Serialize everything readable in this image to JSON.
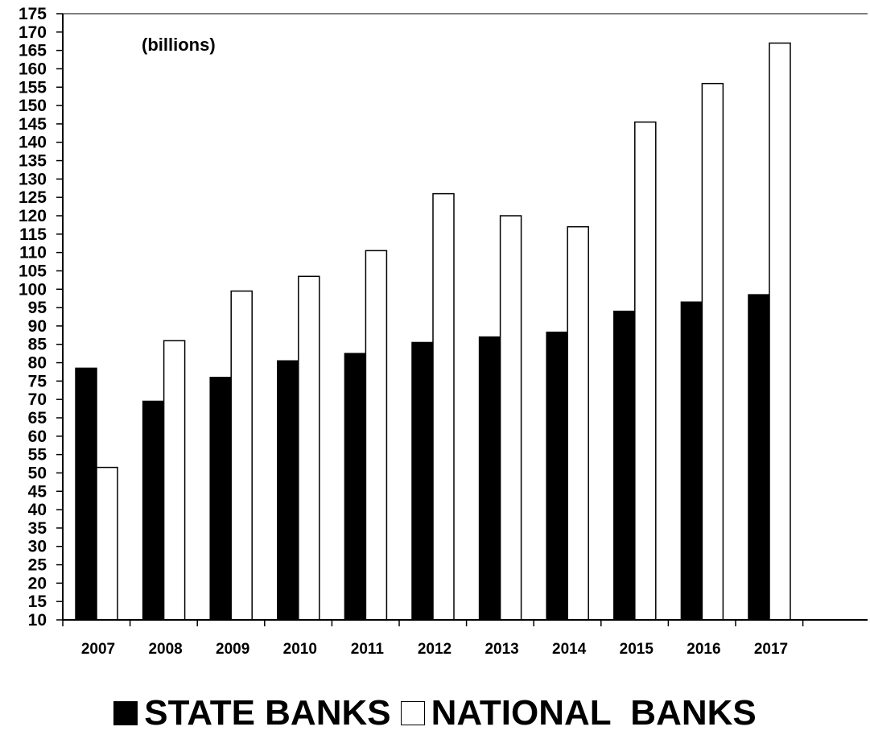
{
  "chart_data": {
    "type": "bar",
    "annotation": "(billions)",
    "categories": [
      "2007",
      "2008",
      "2009",
      "2010",
      "2011",
      "2012",
      "2013",
      "2014",
      "2015",
      "2016",
      "2017"
    ],
    "series": [
      {
        "name": "STATE BANKS",
        "color": "#000000",
        "values": [
          78.5,
          69.5,
          76,
          80.5,
          82.5,
          85.5,
          87,
          88.3,
          94,
          96.5,
          98.5
        ]
      },
      {
        "name": "NATIONAL  BANKS",
        "color": "#ffffff",
        "values": [
          51.5,
          86,
          99.5,
          103.5,
          110.5,
          126,
          120,
          117,
          145.5,
          156,
          167
        ]
      }
    ],
    "yticks": [
      10,
      15,
      20,
      25,
      30,
      35,
      40,
      45,
      50,
      55,
      60,
      65,
      70,
      75,
      80,
      85,
      90,
      95,
      100,
      105,
      110,
      115,
      120,
      125,
      130,
      135,
      140,
      145,
      150,
      155,
      160,
      165,
      170,
      175
    ],
    "ylim": [
      10,
      175
    ],
    "grid": false,
    "legend_position": "bottom"
  }
}
